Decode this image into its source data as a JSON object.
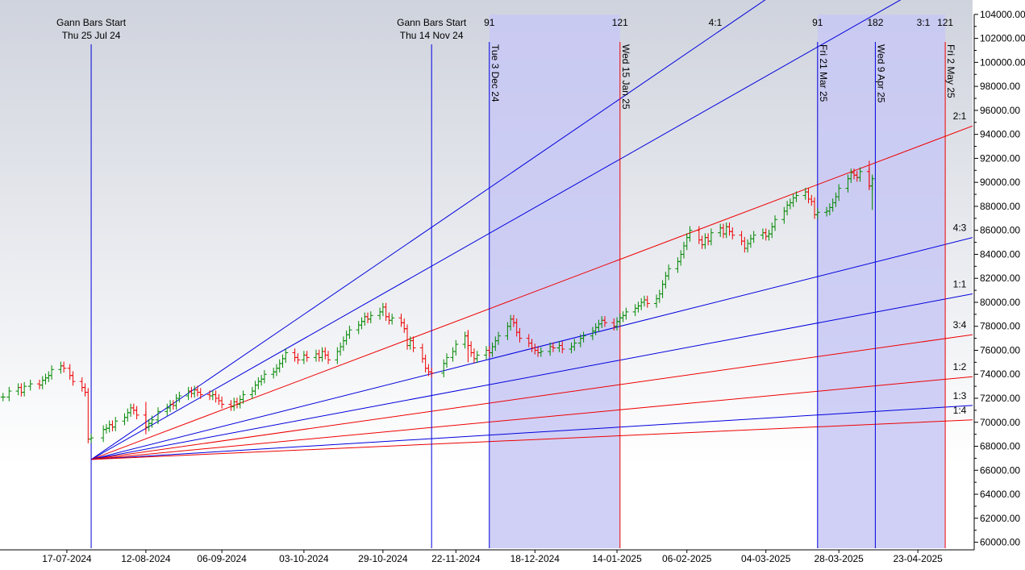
{
  "chart_data": {
    "type": "ohlc",
    "y_axis": {
      "ticks": [
        "104000.00",
        "102000.00",
        "100000.00",
        "98000.00",
        "96000.00",
        "94000.00",
        "92000.00",
        "90000.00",
        "88000.00",
        "86000.00",
        "84000.00",
        "82000.00",
        "80000.00",
        "78000.00",
        "76000.00",
        "74000.00",
        "72000.00",
        "70000.00",
        "68000.00",
        "66000.00",
        "64000.00",
        "62000.00",
        "60000.00"
      ],
      "range": [
        59500,
        105200
      ],
      "position": "right"
    },
    "x_axis": {
      "ticks": [
        "17-07-2024",
        "12-08-2024",
        "06-09-2024",
        "03-10-2024",
        "29-10-2024",
        "22-11-2024",
        "18-12-2024",
        "14-01-2025",
        "06-02-2025",
        "04-03-2025",
        "28-03-2025",
        "23-04-2025"
      ],
      "start_date": "2024-06-25",
      "end_date": "2025-05-11"
    },
    "shaded_regions": [
      {
        "from": "2024-12-03",
        "to": "2025-01-15"
      },
      {
        "from": "2025-03-21",
        "to": "2025-05-02"
      }
    ],
    "gann_starts": [
      {
        "title": "Gann Bars Start",
        "date_label": "Thu 25 Jul 24",
        "date": "2024-07-25"
      },
      {
        "title": "Gann Bars Start",
        "date_label": "Thu 14 Nov 24",
        "date": "2024-11-14"
      }
    ],
    "vertical_markers": [
      {
        "label": "Tue 3 Dec 24",
        "date": "2024-12-03",
        "color": "#0000dd",
        "count": "91"
      },
      {
        "label": "Wed 15 Jan 25",
        "date": "2025-01-15",
        "color": "#ee0000",
        "count": "121"
      },
      {
        "label": "Fri 21 Mar 25",
        "date": "2025-03-21",
        "color": "#0000dd",
        "count": "91"
      },
      {
        "label": "Wed 9 Apr 25",
        "date": "2025-04-09",
        "color": "#0000dd",
        "count": "182"
      },
      {
        "label": "Fri 2 May 25",
        "date": "2025-05-02",
        "color": "#ee0000",
        "count": "121"
      }
    ],
    "gann_fan": {
      "origin": {
        "date": "2024-07-25",
        "price": 66900
      },
      "lines": [
        {
          "ratio": "4:1",
          "color": "#0000dd",
          "points": [
            [
              "2024-07-25",
              66900
            ],
            [
              "2025-03-06",
              105600
            ]
          ]
        },
        {
          "ratio": "3:1",
          "color": "#0000dd",
          "points": [
            [
              "2024-07-25",
              66900
            ],
            [
              "2025-04-20",
              105600
            ]
          ]
        },
        {
          "ratio": "2:1",
          "color": "#ee0000",
          "points": [
            [
              "2024-07-25",
              66900
            ],
            [
              "2025-05-11",
              94700
            ]
          ]
        },
        {
          "ratio": "4:3",
          "color": "#0000dd",
          "points": [
            [
              "2024-07-25",
              66900
            ],
            [
              "2025-05-11",
              85400
            ]
          ]
        },
        {
          "ratio": "1:1",
          "color": "#0000dd",
          "points": [
            [
              "2024-07-25",
              66900
            ],
            [
              "2025-05-11",
              80700
            ]
          ]
        },
        {
          "ratio": "3:4",
          "color": "#ee0000",
          "points": [
            [
              "2024-07-25",
              66900
            ],
            [
              "2025-05-11",
              77300
            ]
          ]
        },
        {
          "ratio": "1:2",
          "color": "#ee0000",
          "points": [
            [
              "2024-07-25",
              66900
            ],
            [
              "2025-05-11",
              73800
            ]
          ]
        },
        {
          "ratio": "1:3",
          "color": "#0000dd",
          "points": [
            [
              "2024-07-25",
              66900
            ],
            [
              "2025-05-11",
              71400
            ]
          ]
        },
        {
          "ratio": "1:4",
          "color": "#ee0000",
          "points": [
            [
              "2024-07-25",
              66900
            ],
            [
              "2025-05-11",
              70200
            ]
          ]
        }
      ]
    },
    "closes": [
      [
        "2024-06-26",
        72100
      ],
      [
        "2024-06-28",
        72600
      ],
      [
        "2024-07-01",
        72900
      ],
      [
        "2024-07-02",
        72500
      ],
      [
        "2024-07-03",
        73000
      ],
      [
        "2024-07-05",
        73200
      ],
      [
        "2024-07-08",
        73100
      ],
      [
        "2024-07-09",
        73500
      ],
      [
        "2024-07-10",
        73700
      ],
      [
        "2024-07-11",
        73900
      ],
      [
        "2024-07-12",
        74400
      ],
      [
        "2024-07-15",
        74700
      ],
      [
        "2024-07-16",
        74500
      ],
      [
        "2024-07-18",
        73900
      ],
      [
        "2024-07-19",
        73400
      ],
      [
        "2024-07-22",
        72900
      ],
      [
        "2024-07-23",
        72500
      ],
      [
        "2024-07-24",
        68600
      ],
      [
        "2024-07-25",
        68700
      ],
      [
        "2024-07-29",
        69400
      ],
      [
        "2024-07-30",
        69500
      ],
      [
        "2024-07-31",
        69800
      ],
      [
        "2024-08-01",
        69600
      ],
      [
        "2024-08-02",
        70100
      ],
      [
        "2024-08-05",
        70400
      ],
      [
        "2024-08-06",
        70800
      ],
      [
        "2024-08-07",
        71200
      ],
      [
        "2024-08-08",
        71000
      ],
      [
        "2024-08-09",
        70600
      ],
      [
        "2024-08-12",
        69600
      ],
      [
        "2024-08-13",
        69900
      ],
      [
        "2024-08-14",
        70200
      ],
      [
        "2024-08-16",
        70900
      ],
      [
        "2024-08-19",
        71200
      ],
      [
        "2024-08-20",
        71500
      ],
      [
        "2024-08-21",
        71400
      ],
      [
        "2024-08-22",
        72000
      ],
      [
        "2024-08-23",
        72200
      ],
      [
        "2024-08-26",
        72600
      ],
      [
        "2024-08-27",
        72400
      ],
      [
        "2024-08-28",
        72700
      ],
      [
        "2024-08-29",
        72500
      ],
      [
        "2024-08-30",
        72300
      ],
      [
        "2024-09-02",
        72200
      ],
      [
        "2024-09-03",
        72300
      ],
      [
        "2024-09-04",
        72000
      ],
      [
        "2024-09-05",
        71800
      ],
      [
        "2024-09-06",
        71500
      ],
      [
        "2024-09-09",
        71300
      ],
      [
        "2024-09-10",
        71700
      ],
      [
        "2024-09-11",
        71500
      ],
      [
        "2024-09-12",
        71900
      ],
      [
        "2024-09-13",
        72300
      ],
      [
        "2024-09-16",
        72600
      ],
      [
        "2024-09-17",
        73100
      ],
      [
        "2024-09-18",
        73400
      ],
      [
        "2024-09-19",
        73600
      ],
      [
        "2024-09-20",
        74000
      ],
      [
        "2024-09-23",
        74200
      ],
      [
        "2024-09-24",
        74500
      ],
      [
        "2024-09-25",
        74900
      ],
      [
        "2024-09-26",
        75300
      ],
      [
        "2024-09-27",
        75800
      ],
      [
        "2024-09-30",
        75400
      ],
      [
        "2024-10-01",
        75200
      ],
      [
        "2024-10-03",
        75600
      ],
      [
        "2024-10-04",
        75400
      ],
      [
        "2024-10-07",
        75700
      ],
      [
        "2024-10-08",
        75400
      ],
      [
        "2024-10-09",
        75900
      ],
      [
        "2024-10-10",
        75600
      ],
      [
        "2024-10-11",
        75200
      ],
      [
        "2024-10-14",
        75900
      ],
      [
        "2024-10-15",
        76300
      ],
      [
        "2024-10-16",
        76800
      ],
      [
        "2024-10-17",
        77300
      ],
      [
        "2024-10-18",
        77700
      ],
      [
        "2024-10-21",
        78100
      ],
      [
        "2024-10-22",
        78400
      ],
      [
        "2024-10-23",
        78800
      ],
      [
        "2024-10-24",
        78600
      ],
      [
        "2024-10-25",
        78900
      ],
      [
        "2024-10-28",
        79200
      ],
      [
        "2024-10-29",
        79600
      ],
      [
        "2024-10-30",
        78800
      ],
      [
        "2024-10-31",
        78500
      ],
      [
        "2024-11-01",
        78700
      ],
      [
        "2024-11-04",
        78300
      ],
      [
        "2024-11-05",
        77800
      ],
      [
        "2024-11-06",
        76400
      ],
      [
        "2024-11-07",
        76800
      ],
      [
        "2024-11-08",
        76200
      ],
      [
        "2024-11-11",
        75300
      ],
      [
        "2024-11-12",
        74500
      ],
      [
        "2024-11-13",
        74200
      ],
      [
        "2024-11-14",
        74100
      ],
      [
        "2024-11-18",
        74900
      ],
      [
        "2024-11-19",
        75400
      ],
      [
        "2024-11-21",
        75900
      ],
      [
        "2024-11-22",
        76500
      ],
      [
        "2024-11-25",
        77200
      ],
      [
        "2024-11-26",
        76400
      ],
      [
        "2024-11-27",
        75800
      ],
      [
        "2024-11-28",
        75300
      ],
      [
        "2024-11-29",
        75600
      ],
      [
        "2024-12-02",
        76000
      ],
      [
        "2024-12-03",
        75800
      ],
      [
        "2024-12-04",
        76300
      ],
      [
        "2024-12-05",
        76800
      ],
      [
        "2024-12-06",
        77200
      ],
      [
        "2024-12-09",
        78000
      ],
      [
        "2024-12-10",
        78600
      ],
      [
        "2024-12-11",
        78300
      ],
      [
        "2024-12-12",
        77500
      ],
      [
        "2024-12-13",
        77000
      ],
      [
        "2024-12-16",
        76600
      ],
      [
        "2024-12-17",
        76200
      ],
      [
        "2024-12-18",
        76000
      ],
      [
        "2024-12-19",
        75800
      ],
      [
        "2024-12-20",
        75900
      ],
      [
        "2024-12-23",
        76300
      ],
      [
        "2024-12-24",
        76200
      ],
      [
        "2024-12-26",
        76400
      ],
      [
        "2024-12-27",
        76100
      ],
      [
        "2024-12-30",
        76300
      ],
      [
        "2024-12-31",
        76600
      ],
      [
        "2025-01-02",
        77000
      ],
      [
        "2025-01-03",
        77200
      ],
      [
        "2025-01-06",
        77600
      ],
      [
        "2025-01-07",
        77900
      ],
      [
        "2025-01-08",
        78200
      ],
      [
        "2025-01-09",
        78500
      ],
      [
        "2025-01-10",
        78300
      ],
      [
        "2025-01-13",
        78000
      ],
      [
        "2025-01-14",
        78400
      ],
      [
        "2025-01-15",
        78700
      ],
      [
        "2025-01-16",
        78900
      ],
      [
        "2025-01-17",
        79200
      ],
      [
        "2025-01-20",
        79500
      ],
      [
        "2025-01-21",
        79700
      ],
      [
        "2025-01-22",
        80000
      ],
      [
        "2025-01-23",
        80200
      ],
      [
        "2025-01-24",
        79900
      ],
      [
        "2025-01-27",
        80300
      ],
      [
        "2025-01-28",
        80700
      ],
      [
        "2025-01-29",
        81500
      ],
      [
        "2025-01-30",
        82200
      ],
      [
        "2025-01-31",
        82800
      ],
      [
        "2025-02-03",
        83400
      ],
      [
        "2025-02-04",
        84000
      ],
      [
        "2025-02-05",
        84700
      ],
      [
        "2025-02-06",
        85400
      ],
      [
        "2025-02-07",
        86000
      ],
      [
        "2025-02-10",
        85200
      ],
      [
        "2025-02-11",
        84800
      ],
      [
        "2025-02-12",
        85400
      ],
      [
        "2025-02-13",
        85100
      ],
      [
        "2025-02-14",
        85800
      ],
      [
        "2025-02-17",
        86200
      ],
      [
        "2025-02-18",
        85700
      ],
      [
        "2025-02-19",
        86300
      ],
      [
        "2025-02-20",
        85900
      ],
      [
        "2025-02-21",
        85600
      ],
      [
        "2025-02-24",
        85100
      ],
      [
        "2025-02-25",
        84500
      ],
      [
        "2025-02-26",
        84900
      ],
      [
        "2025-02-27",
        85300
      ],
      [
        "2025-02-28",
        85600
      ],
      [
        "2025-03-03",
        85800
      ],
      [
        "2025-03-04",
        85500
      ],
      [
        "2025-03-05",
        85700
      ],
      [
        "2025-03-06",
        86300
      ],
      [
        "2025-03-07",
        86900
      ],
      [
        "2025-03-10",
        87600
      ],
      [
        "2025-03-11",
        88100
      ],
      [
        "2025-03-12",
        88300
      ],
      [
        "2025-03-13",
        88700
      ],
      [
        "2025-03-14",
        88900
      ],
      [
        "2025-03-17",
        89200
      ],
      [
        "2025-03-18",
        88600
      ],
      [
        "2025-03-19",
        88400
      ],
      [
        "2025-03-20",
        87300
      ],
      [
        "2025-03-21",
        87500
      ],
      [
        "2025-03-24",
        87600
      ],
      [
        "2025-03-25",
        87900
      ],
      [
        "2025-03-26",
        88300
      ],
      [
        "2025-03-27",
        88800
      ],
      [
        "2025-03-28",
        89500
      ],
      [
        "2025-03-31",
        90300
      ],
      [
        "2025-04-01",
        90800
      ],
      [
        "2025-04-02",
        90600
      ],
      [
        "2025-04-03",
        90400
      ],
      [
        "2025-04-04",
        90900
      ],
      [
        "2025-04-07",
        89700
      ],
      [
        "2025-04-08",
        90300
      ]
    ]
  }
}
